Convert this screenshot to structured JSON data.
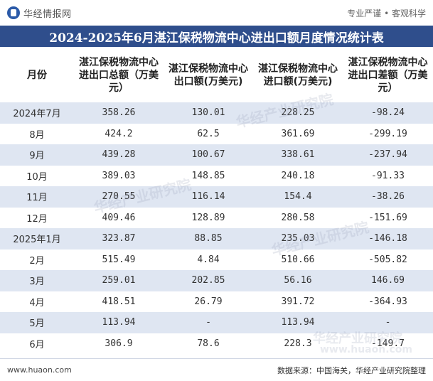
{
  "header": {
    "brand": "华经情报网",
    "slogan": "专业严谨 • 客观科学"
  },
  "title": "2024-2025年6月湛江保税物流中心进出口额月度情况统计表",
  "table": {
    "columns": [
      "月份",
      "湛江保税物流中心进出口总额（万美元）",
      "湛江保税物流中心出口额(万美元)",
      "湛江保税物流中心进口额(万美元)",
      "湛江保税物流中心进出口差额（万美元）"
    ],
    "rows": [
      [
        "2024年7月",
        "358.26",
        "130.01",
        "228.25",
        "-98.24"
      ],
      [
        "8月",
        "424.2",
        "62.5",
        "361.69",
        "-299.19"
      ],
      [
        "9月",
        "439.28",
        "100.67",
        "338.61",
        "-237.94"
      ],
      [
        "10月",
        "389.03",
        "148.85",
        "240.18",
        "-91.33"
      ],
      [
        "11月",
        "270.55",
        "116.14",
        "154.4",
        "-38.26"
      ],
      [
        "12月",
        "409.46",
        "128.89",
        "280.58",
        "-151.69"
      ],
      [
        "2025年1月",
        "323.87",
        "88.85",
        "235.03",
        "-146.18"
      ],
      [
        "2月",
        "515.49",
        "4.84",
        "510.66",
        "-505.82"
      ],
      [
        "3月",
        "259.01",
        "202.85",
        "56.16",
        "146.69"
      ],
      [
        "4月",
        "418.51",
        "26.79",
        "391.72",
        "-364.93"
      ],
      [
        "5月",
        "113.94",
        "-",
        "113.94",
        "-"
      ],
      [
        "6月",
        "306.9",
        "78.6",
        "228.3",
        "-149.7"
      ]
    ]
  },
  "footer": {
    "website": "www.huaon.com",
    "source": "数据来源：中国海关，华经产业研究院整理"
  },
  "watermark": {
    "text": "华经产业研究院",
    "url": "www.huaon.com"
  },
  "colors": {
    "title_bg": "#2f4e8c",
    "row_shade": "#dfe6f2",
    "logo": "#2b5aa8"
  }
}
